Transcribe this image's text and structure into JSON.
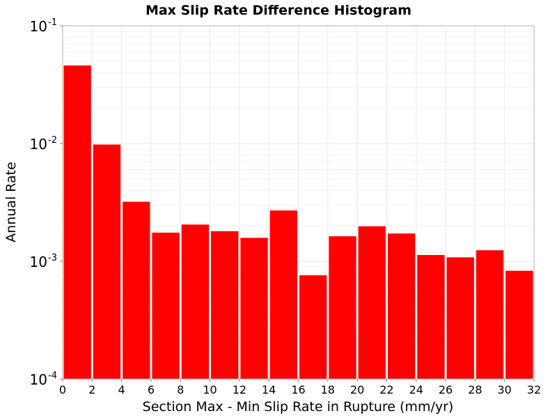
{
  "chart_data": {
    "type": "bar",
    "title": "Max Slip Rate Difference Histogram",
    "xlabel": "Section Max - Min Slip Rate in Rupture (mm/yr)",
    "ylabel": "Annual Rate",
    "xlim": [
      0,
      32
    ],
    "ylim": [
      0.0001,
      0.1
    ],
    "yscale": "log",
    "bin_width": 2,
    "x_ticks": [
      "0",
      "2",
      "4",
      "6",
      "8",
      "10",
      "12",
      "14",
      "16",
      "18",
      "20",
      "22",
      "24",
      "26",
      "28",
      "30",
      "32"
    ],
    "y_ticks": [
      {
        "base": "10",
        "exp": "-1",
        "value": 0.1
      },
      {
        "base": "10",
        "exp": "-2",
        "value": 0.01
      },
      {
        "base": "10",
        "exp": "-3",
        "value": 0.001
      },
      {
        "base": "10",
        "exp": "-4",
        "value": 0.0001
      }
    ],
    "bins": [
      {
        "x": 1,
        "value": 0.046
      },
      {
        "x": 3,
        "value": 0.0098
      },
      {
        "x": 5,
        "value": 0.0032
      },
      {
        "x": 7,
        "value": 0.00175
      },
      {
        "x": 9,
        "value": 0.00205
      },
      {
        "x": 11,
        "value": 0.0018
      },
      {
        "x": 13,
        "value": 0.00158
      },
      {
        "x": 15,
        "value": 0.0027
      },
      {
        "x": 17,
        "value": 0.00076
      },
      {
        "x": 19,
        "value": 0.00163
      },
      {
        "x": 21,
        "value": 0.00198
      },
      {
        "x": 23,
        "value": 0.00172
      },
      {
        "x": 25,
        "value": 0.00113
      },
      {
        "x": 27,
        "value": 0.00108
      },
      {
        "x": 29,
        "value": 0.00124
      },
      {
        "x": 31,
        "value": 0.00083
      }
    ],
    "bar_color": "#ff0000",
    "grid": true,
    "legend": "none"
  }
}
